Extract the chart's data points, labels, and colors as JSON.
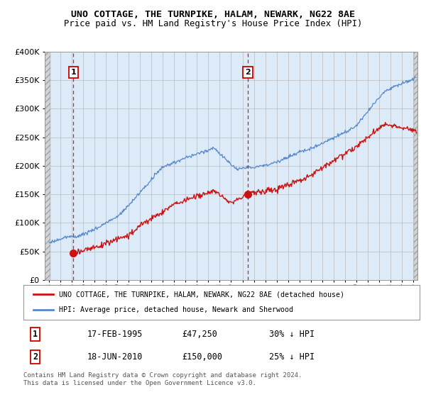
{
  "title": "UNO COTTAGE, THE TURNPIKE, HALAM, NEWARK, NG22 8AE",
  "subtitle": "Price paid vs. HM Land Registry's House Price Index (HPI)",
  "ylim": [
    0,
    400000
  ],
  "yticks": [
    0,
    50000,
    100000,
    150000,
    200000,
    250000,
    300000,
    350000,
    400000
  ],
  "xlim_start": 1992.6,
  "xlim_end": 2025.4,
  "hatch_left_end": 1993.08,
  "hatch_right_start": 2025.08,
  "sale1_date": 1995.12,
  "sale1_price": 47250,
  "sale1_label": "1",
  "sale2_date": 2010.46,
  "sale2_price": 150000,
  "sale2_label": "2",
  "bg_color": "#ddeaf7",
  "hatch_color": "#cccccc",
  "grid_color": "#bbbbbb",
  "red_line_color": "#cc1111",
  "blue_line_color": "#5588cc",
  "dashed_line_color": "#cc2222",
  "legend_label1": "UNO COTTAGE, THE TURNPIKE, HALAM, NEWARK, NG22 8AE (detached house)",
  "legend_label2": "HPI: Average price, detached house, Newark and Sherwood",
  "table_row1": [
    "1",
    "17-FEB-1995",
    "£47,250",
    "30% ↓ HPI"
  ],
  "table_row2": [
    "2",
    "18-JUN-2010",
    "£150,000",
    "25% ↓ HPI"
  ],
  "footer": "Contains HM Land Registry data © Crown copyright and database right 2024.\nThis data is licensed under the Open Government Licence v3.0.",
  "title_fontsize": 9.5,
  "subtitle_fontsize": 8.8,
  "tick_fontsize": 7.5,
  "ytick_fontsize": 8
}
